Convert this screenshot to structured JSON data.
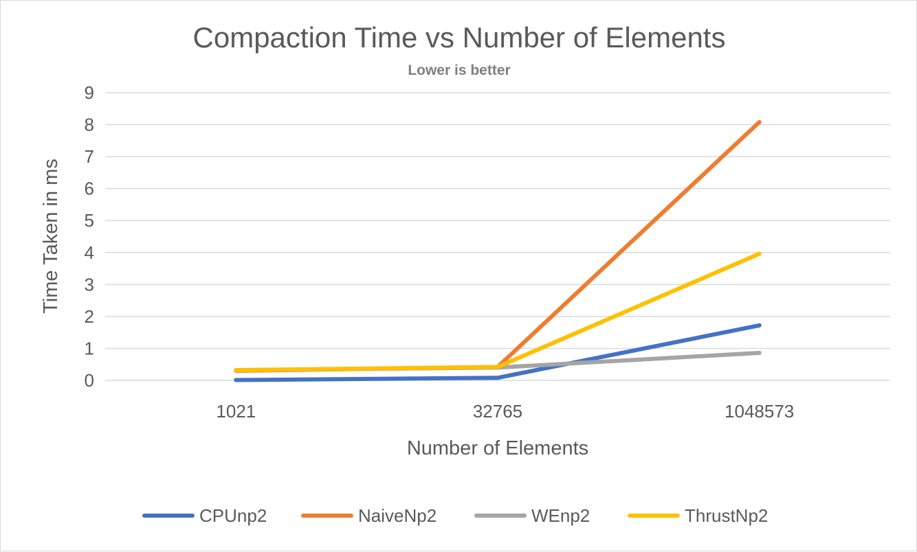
{
  "chart_data": {
    "type": "line",
    "title": "Compaction Time vs Number of Elements",
    "subtitle": "Lower is better",
    "xlabel": "Number of Elements",
    "ylabel": "Time Taken in ms",
    "categories": [
      "1021",
      "32765",
      "1048573"
    ],
    "ylim": [
      0,
      9
    ],
    "yticks": [
      0,
      1,
      2,
      3,
      4,
      5,
      6,
      7,
      8,
      9
    ],
    "grid": true,
    "legend_position": "bottom",
    "series": [
      {
        "name": "CPUnp2",
        "color": "#4472c4",
        "values": [
          0.01,
          0.08,
          1.72
        ]
      },
      {
        "name": "NaiveNp2",
        "color": "#ed7d31",
        "values": [
          0.3,
          0.42,
          8.08
        ]
      },
      {
        "name": "WEnp2",
        "color": "#a5a5a5",
        "values": [
          0.32,
          0.4,
          0.86
        ]
      },
      {
        "name": "ThrustNp2",
        "color": "#ffc000",
        "values": [
          0.32,
          0.42,
          3.96
        ]
      }
    ]
  }
}
